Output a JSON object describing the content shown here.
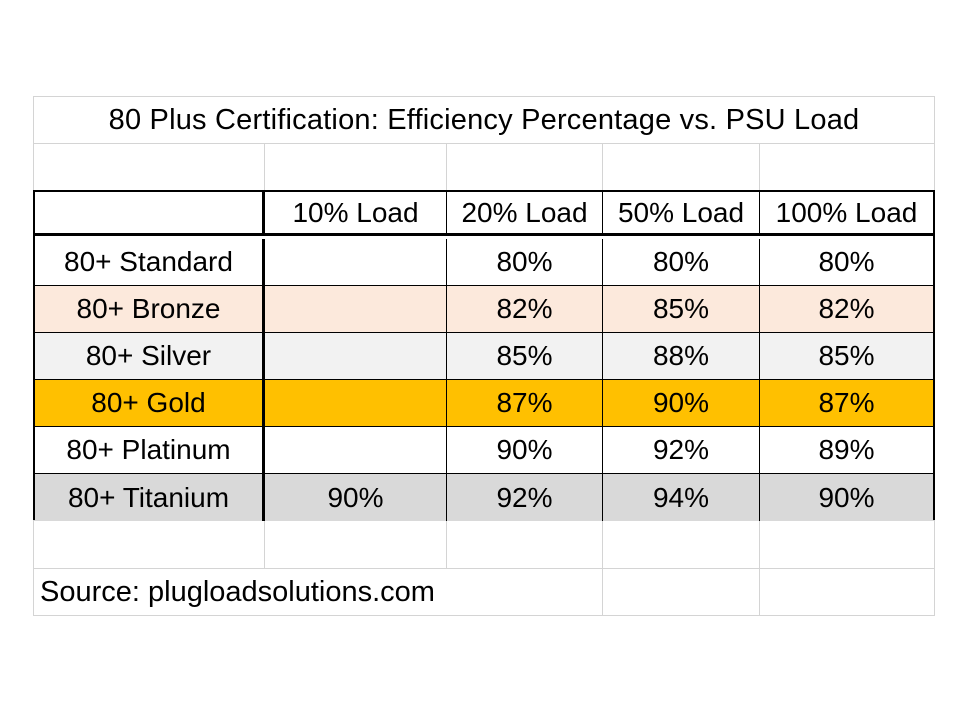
{
  "title": "80 Plus Certification: Efficiency Percentage vs. PSU Load",
  "source": "Source: plugloadsolutions.com",
  "colors": {
    "standard": "#ffffff",
    "bronze": "#fce9dc",
    "silver": "#f2f2f2",
    "gold": "#ffc000",
    "platinum": "#ffffff",
    "titanium": "#d9d9d9"
  },
  "chart_data": {
    "type": "table",
    "title": "80 Plus Certification: Efficiency Percentage vs. PSU Load",
    "columns": [
      "",
      "10% Load",
      "20% Load",
      "50% Load",
      "100% Load"
    ],
    "rows": [
      {
        "label": "80+ Standard",
        "values": [
          "",
          "80%",
          "80%",
          "80%"
        ],
        "color": "#ffffff"
      },
      {
        "label": "80+ Bronze",
        "values": [
          "",
          "82%",
          "85%",
          "82%"
        ],
        "color": "#fce9dc"
      },
      {
        "label": "80+ Silver",
        "values": [
          "",
          "85%",
          "88%",
          "85%"
        ],
        "color": "#f2f2f2"
      },
      {
        "label": "80+ Gold",
        "values": [
          "",
          "87%",
          "90%",
          "87%"
        ],
        "color": "#ffc000"
      },
      {
        "label": "80+ Platinum",
        "values": [
          "",
          "90%",
          "92%",
          "89%"
        ],
        "color": "#ffffff"
      },
      {
        "label": "80+ Titanium",
        "values": [
          "90%",
          "92%",
          "94%",
          "90%"
        ],
        "color": "#d9d9d9"
      }
    ]
  }
}
